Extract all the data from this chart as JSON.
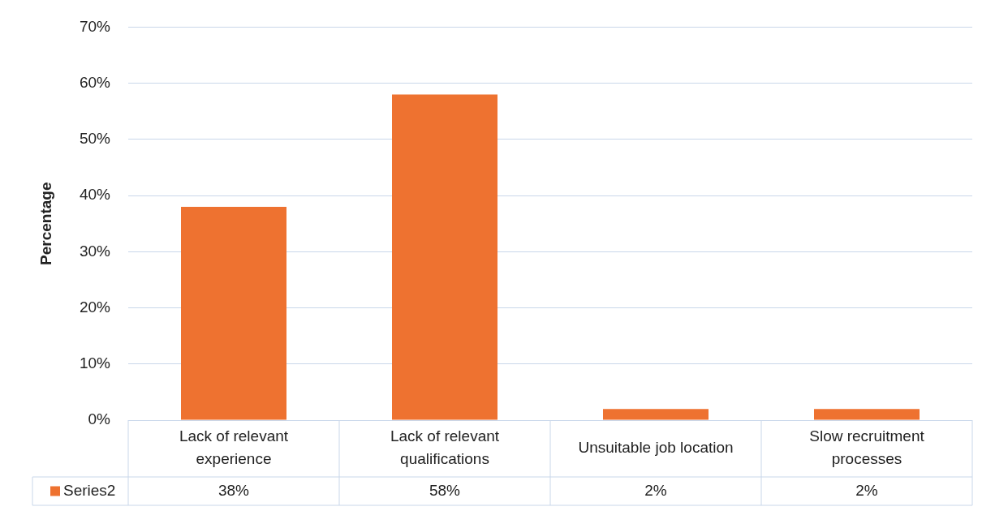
{
  "chart_data": {
    "type": "bar",
    "ylabel": "Percentage",
    "categories": [
      "Lack of relevant experience",
      "Lack of relevant qualifications",
      "Unsuitable job location",
      "Slow recruitment processes"
    ],
    "series": [
      {
        "name": "Series2",
        "color": "#ee7230",
        "values": [
          38,
          58,
          2,
          2
        ],
        "value_labels": [
          "38%",
          "58%",
          "2%",
          "2%"
        ]
      }
    ],
    "ylim": [
      0,
      70
    ],
    "yticks": [
      {
        "value": 0,
        "label": "0%"
      },
      {
        "value": 10,
        "label": "10%"
      },
      {
        "value": 20,
        "label": "20%"
      },
      {
        "value": 30,
        "label": "30%"
      },
      {
        "value": 40,
        "label": "40%"
      },
      {
        "value": 50,
        "label": "50%"
      },
      {
        "value": 60,
        "label": "60%"
      },
      {
        "value": 70,
        "label": "70%"
      }
    ],
    "grid": "y",
    "legend": "bottom"
  }
}
